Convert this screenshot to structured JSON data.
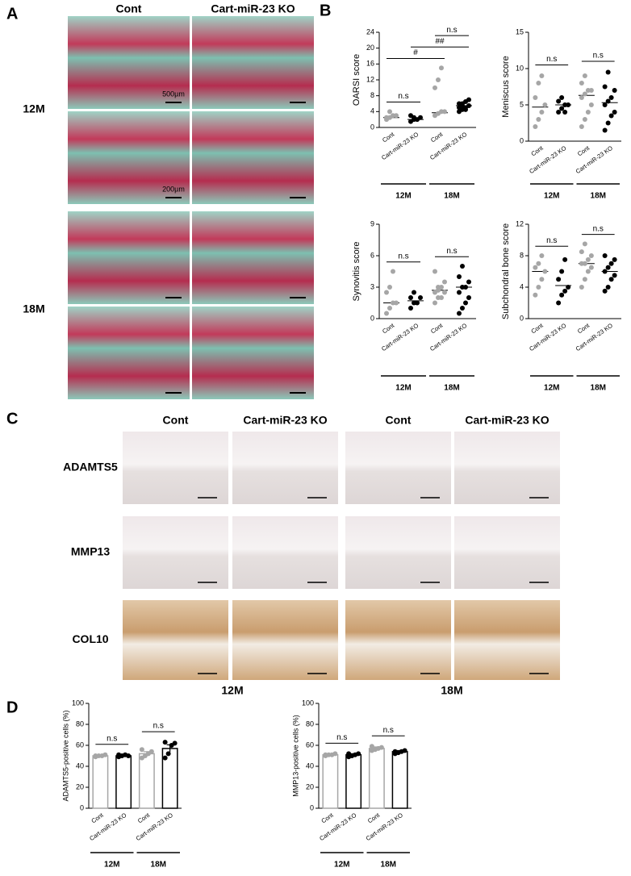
{
  "panel_a": {
    "label": "A",
    "columns": [
      "Cont",
      "Cart-miR-23 KO"
    ],
    "rows": [
      "12M",
      "18M"
    ],
    "scale_bars": [
      "500µm",
      "200µm"
    ]
  },
  "panel_b": {
    "label": "B"
  },
  "panel_c": {
    "label": "C",
    "columns": [
      "Cont",
      "Cart-miR-23 KO",
      "Cont",
      "Cart-miR-23 KO"
    ],
    "rows": [
      "ADAMTS5",
      "MMP13",
      "COL10"
    ],
    "groups": [
      "12M",
      "18M"
    ]
  },
  "panel_d": {
    "label": "D"
  },
  "chart_data": [
    {
      "type": "dot",
      "ylabel": "OARSI score",
      "categories": [
        "Cont",
        "Cart-miR-23 KO",
        "Cont",
        "Cart-miR-23 KO"
      ],
      "groups": [
        "12M",
        "18M"
      ],
      "colors": [
        "#a6a6a6",
        "#000000",
        "#a6a6a6",
        "#000000"
      ],
      "ylim": [
        0,
        24
      ],
      "yticks": [
        0,
        4,
        8,
        12,
        16,
        20,
        24
      ],
      "values": [
        2.5,
        2,
        3.7,
        5.5
      ],
      "points": [
        [
          2,
          2.5,
          3,
          3,
          2.5,
          4
        ],
        [
          1.5,
          2,
          2,
          2.5,
          3,
          2.5
        ],
        [
          3,
          3.5,
          4,
          4,
          10,
          12,
          15
        ],
        [
          4,
          4.5,
          5,
          5.5,
          6,
          6,
          6.5,
          7,
          5,
          5.5,
          4.5
        ]
      ],
      "annotations": [
        {
          "text": "n.s",
          "between": [
            0,
            1
          ]
        },
        {
          "text": "#",
          "between": [
            0,
            2
          ]
        },
        {
          "text": "##",
          "between": [
            1,
            3
          ]
        },
        {
          "text": "n.s",
          "between": [
            2,
            3
          ]
        }
      ]
    },
    {
      "type": "dot",
      "ylabel": "Meniscus score",
      "categories": [
        "Cont",
        "Cart-miR-23 KO",
        "Cont",
        "Cart-miR-23 KO"
      ],
      "groups": [
        "12M",
        "18M"
      ],
      "colors": [
        "#a6a6a6",
        "#000000",
        "#a6a6a6",
        "#000000"
      ],
      "ylim": [
        0,
        15
      ],
      "yticks": [
        0,
        5,
        10,
        15
      ],
      "values": [
        4.7,
        5,
        6.3,
        5.3
      ],
      "points": [
        [
          2,
          3,
          4,
          5,
          6,
          8,
          9
        ],
        [
          4,
          4.5,
          5,
          5,
          5.5,
          6,
          4
        ],
        [
          2,
          3,
          4,
          5,
          6,
          6.5,
          7,
          7,
          8,
          9
        ],
        [
          1.5,
          2.5,
          3.5,
          4,
          5,
          5.5,
          6,
          7,
          7.5,
          9.5
        ]
      ],
      "annotations": [
        {
          "text": "n.s",
          "between": [
            0,
            1
          ]
        },
        {
          "text": "n.s",
          "between": [
            2,
            3
          ]
        }
      ]
    },
    {
      "type": "dot",
      "ylabel": "Synovitis score",
      "categories": [
        "Cont",
        "Cart-miR-23 KO",
        "Cont",
        "Cart-miR-23 KO"
      ],
      "groups": [
        "12M",
        "18M"
      ],
      "colors": [
        "#a6a6a6",
        "#000000",
        "#a6a6a6",
        "#000000"
      ],
      "ylim": [
        0,
        9
      ],
      "yticks": [
        0,
        3,
        6,
        9
      ],
      "values": [
        1.5,
        1.7,
        2.7,
        3
      ],
      "points": [
        [
          0.5,
          1,
          1.5,
          1.5,
          2.5,
          3,
          4.5
        ],
        [
          1,
          1.5,
          1.5,
          2,
          2,
          2.5
        ],
        [
          1.5,
          2,
          2,
          2.5,
          2.5,
          3,
          3,
          3.5,
          4.5,
          2.7
        ],
        [
          0.5,
          1,
          1.5,
          2,
          2.5,
          3,
          3,
          3.5,
          4,
          5
        ]
      ],
      "annotations": [
        {
          "text": "n.s",
          "between": [
            0,
            1
          ]
        },
        {
          "text": "n.s",
          "between": [
            2,
            3
          ]
        }
      ]
    },
    {
      "type": "dot",
      "ylabel": "Subchondral bone score",
      "categories": [
        "Cont",
        "Cart-miR-23 KO",
        "Cont",
        "Cart-miR-23 KO"
      ],
      "groups": [
        "12M",
        "18M"
      ],
      "colors": [
        "#a6a6a6",
        "#000000",
        "#a6a6a6",
        "#000000"
      ],
      "ylim": [
        0,
        12
      ],
      "yticks": [
        0,
        4,
        8,
        12
      ],
      "values": [
        6,
        4.2,
        7,
        6
      ],
      "points": [
        [
          3,
          4,
          5,
          6,
          6.5,
          7,
          8
        ],
        [
          2,
          3,
          3.5,
          4,
          5,
          6,
          7.5
        ],
        [
          4,
          5,
          6,
          6.5,
          7,
          7,
          7.5,
          8,
          8.5,
          9.5
        ],
        [
          3.5,
          4,
          5,
          5.5,
          6,
          6.5,
          7,
          7.5,
          8
        ]
      ],
      "annotations": [
        {
          "text": "n.s",
          "between": [
            0,
            1
          ]
        },
        {
          "text": "n.s",
          "between": [
            2,
            3
          ]
        }
      ]
    },
    {
      "type": "bar",
      "ylabel": "ADAMTS5-positive cells (%)",
      "categories": [
        "Cont",
        "Cart-miR-23 KO",
        "Cont",
        "Cart-miR-23 KO"
      ],
      "groups": [
        "12M",
        "18M"
      ],
      "colors": [
        "#a6a6a6",
        "#000000",
        "#a6a6a6",
        "#000000"
      ],
      "ylim": [
        0,
        100
      ],
      "yticks": [
        0,
        20,
        40,
        60,
        80,
        100
      ],
      "values": [
        50,
        50,
        52,
        57
      ],
      "errors": [
        1,
        1,
        2,
        3.5
      ],
      "points": [
        [
          49,
          50,
          50,
          51,
          50
        ],
        [
          49,
          50,
          51,
          50,
          51
        ],
        [
          48,
          50,
          52,
          54,
          56
        ],
        [
          48,
          52,
          60,
          62,
          63
        ]
      ],
      "annotations": [
        {
          "text": "n.s",
          "between": [
            0,
            1
          ]
        },
        {
          "text": "n.s",
          "between": [
            2,
            3
          ]
        }
      ]
    },
    {
      "type": "bar",
      "ylabel": "MMP13-positive cells (%)",
      "categories": [
        "Cont",
        "Cart-miR-23 KO",
        "Cont",
        "Cart-miR-23 KO"
      ],
      "groups": [
        "12M",
        "18M"
      ],
      "colors": [
        "#a6a6a6",
        "#000000",
        "#a6a6a6",
        "#000000"
      ],
      "ylim": [
        0,
        100
      ],
      "yticks": [
        0,
        20,
        40,
        60,
        80,
        100
      ],
      "values": [
        51,
        51,
        57,
        54
      ],
      "errors": [
        1,
        1,
        1.5,
        1
      ],
      "points": [
        [
          50,
          51,
          51,
          52,
          51
        ],
        [
          49,
          50,
          51,
          52,
          52
        ],
        [
          55,
          56,
          57,
          58,
          59
        ],
        [
          52,
          53,
          54,
          55,
          54
        ]
      ],
      "annotations": [
        {
          "text": "n.s",
          "between": [
            0,
            1
          ]
        },
        {
          "text": "n.s",
          "between": [
            2,
            3
          ]
        }
      ]
    }
  ]
}
